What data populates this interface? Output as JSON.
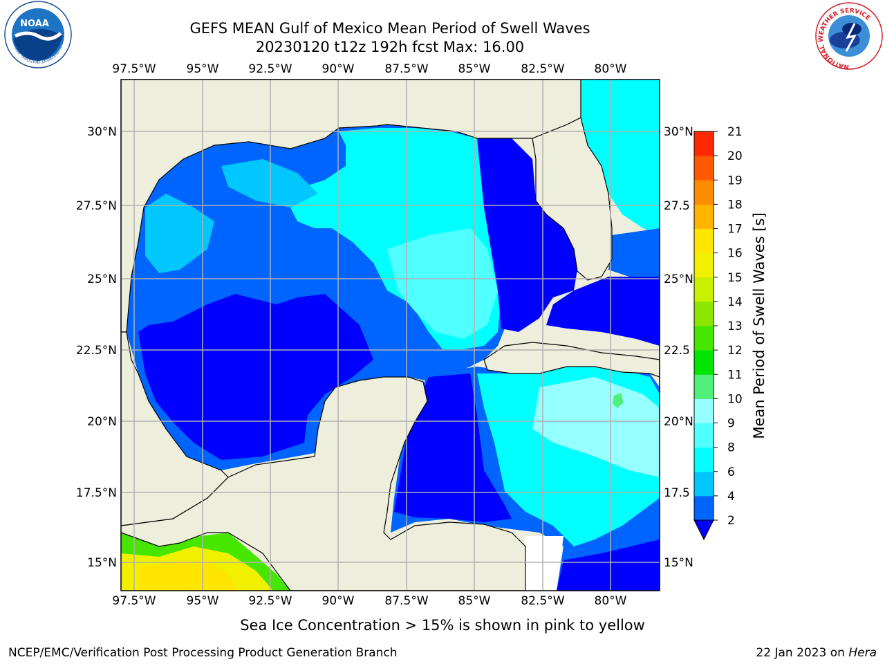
{
  "title": {
    "line1": "GEFS MEAN Gulf of Mexico Mean Period of Swell Waves",
    "line2": "20230120 t12z 192h fcst   Max: 16.00"
  },
  "logos": {
    "left": {
      "name": "NOAA",
      "ring_text": "NATIONAL OCEANIC AND ATMOSPHERIC ADMINISTRATION · U.S. DEPARTMENT OF COMMERCE"
    },
    "right": {
      "name": "National Weather Service",
      "ring_text": "NATIONAL WEATHER SERVICE"
    }
  },
  "map": {
    "lon_range": [
      -98.0,
      -78.0
    ],
    "lat_range": [
      14.0,
      32.0
    ],
    "lon_ticks": [
      {
        "value": -97.5,
        "label": "97.5°W"
      },
      {
        "value": -95.0,
        "label": "95°W"
      },
      {
        "value": -92.5,
        "label": "92.5°W"
      },
      {
        "value": -90.0,
        "label": "90°W"
      },
      {
        "value": -87.5,
        "label": "87.5°W"
      },
      {
        "value": -85.0,
        "label": "85°W"
      },
      {
        "value": -82.5,
        "label": "82.5°W"
      },
      {
        "value": -80.0,
        "label": "80°W"
      }
    ],
    "lat_ticks_left": [
      {
        "value": 30.0,
        "label": "30°N"
      },
      {
        "value": 27.5,
        "label": "27.5°N"
      },
      {
        "value": 25.0,
        "label": "25°N"
      },
      {
        "value": 22.5,
        "label": "22.5°N"
      },
      {
        "value": 20.0,
        "label": "20°N"
      },
      {
        "value": 17.5,
        "label": "17.5°N"
      },
      {
        "value": 15.0,
        "label": "15°N"
      }
    ],
    "lat_ticks_right": [
      {
        "value": 30.0,
        "label": "30°N"
      },
      {
        "value": 27.5,
        "label": "27.5"
      },
      {
        "value": 25.0,
        "label": "25°N"
      },
      {
        "value": 22.5,
        "label": "22.5"
      },
      {
        "value": 20.0,
        "label": "20°N"
      },
      {
        "value": 17.5,
        "label": "17.5"
      },
      {
        "value": 15.0,
        "label": "15°N"
      }
    ],
    "colors": {
      "land": "#eeeedc",
      "grid": "#b0b0b0",
      "coast": "#000000"
    }
  },
  "colorbar": {
    "label": "Mean Period of Swell Waves [s]",
    "levels": [
      2,
      4,
      6,
      8,
      9,
      10,
      11,
      12,
      13,
      14,
      15,
      16,
      17,
      18,
      19,
      20,
      21
    ],
    "colors": [
      "#0064ff",
      "#00c8ff",
      "#00ffff",
      "#50ffff",
      "#96ffff",
      "#50f07a",
      "#00e600",
      "#46e600",
      "#8ce600",
      "#c8f000",
      "#f0f000",
      "#ffe600",
      "#ffb400",
      "#ff8c00",
      "#ff5a00",
      "#ff2800"
    ],
    "under_color": "#0000ff",
    "tick_labels": [
      "2",
      "4",
      "6",
      "8",
      "9",
      "10",
      "11",
      "12",
      "13",
      "14",
      "15",
      "16",
      "17",
      "18",
      "19",
      "20",
      "21"
    ]
  },
  "footer": {
    "note": "Sea Ice Concentration > 15% is shown in pink to yellow",
    "credit": "NCEP/EMC/Verification Post Processing Product Generation Branch",
    "date": "22 Jan 2023 on ",
    "machine": "Hera"
  }
}
